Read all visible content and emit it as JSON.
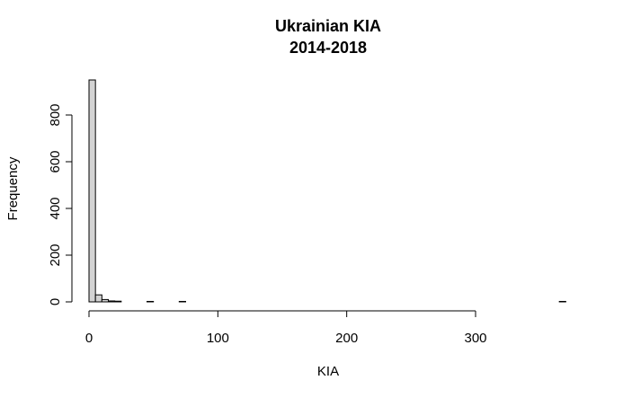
{
  "chart_data": {
    "type": "bar",
    "title_lines": [
      "Ukrainian KIA",
      "2014-2018"
    ],
    "xlabel": "KIA",
    "ylabel": "Frequency",
    "bin_width": 5,
    "bins": [
      {
        "start": 0,
        "end": 5,
        "count": 950
      },
      {
        "start": 5,
        "end": 10,
        "count": 30
      },
      {
        "start": 10,
        "end": 15,
        "count": 10
      },
      {
        "start": 15,
        "end": 20,
        "count": 4
      },
      {
        "start": 20,
        "end": 25,
        "count": 3
      },
      {
        "start": 45,
        "end": 50,
        "count": 2
      },
      {
        "start": 70,
        "end": 75,
        "count": 2
      },
      {
        "start": 365,
        "end": 370,
        "count": 2
      }
    ],
    "x_ticks": [
      0,
      100,
      200,
      300
    ],
    "y_ticks": [
      0,
      200,
      400,
      600,
      800
    ],
    "xlim": [
      0,
      370
    ],
    "ylim": [
      0,
      950
    ],
    "grid": false,
    "legend": "none"
  }
}
